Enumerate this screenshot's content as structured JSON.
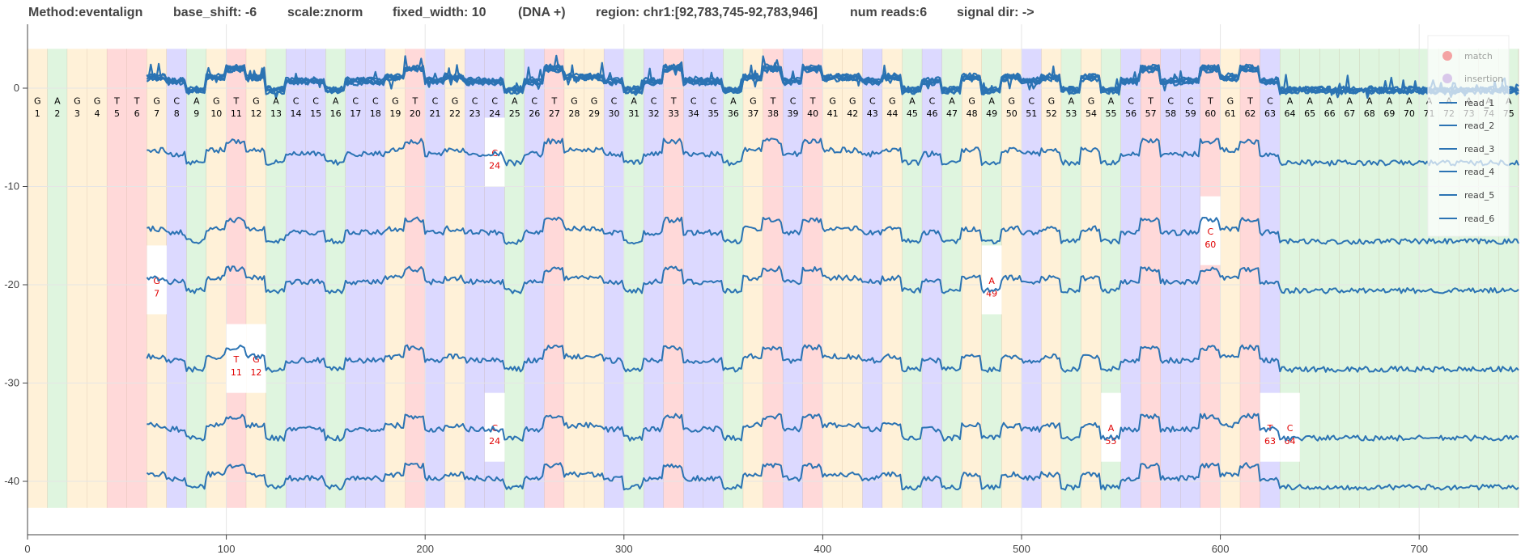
{
  "header": {
    "method": "Method:eventalign",
    "base_shift": "base_shift: -6",
    "scale": "scale:znorm",
    "fixed_width": "fixed_width: 10",
    "strand": "(DNA +)",
    "region": "region: chr1:[92,783,745-92,783,946]",
    "num_reads": "num reads:6",
    "signal_dir": "signal dir: ->"
  },
  "colors": {
    "A": "#dff5df",
    "C": "#dcd9ff",
    "G": "#fff1d8",
    "T": "#ffd9d9",
    "signal": "#2b73b3",
    "insertion_text": "#e00000",
    "match_marker": "#f4a3a3",
    "insertion_marker": "#d9c8ea"
  },
  "legend": {
    "match": "match",
    "insertion": "insertion",
    "reads": [
      "read_1",
      "read_2",
      "read_3",
      "read_4",
      "read_5",
      "read_6"
    ]
  },
  "chart_data": {
    "type": "line",
    "title": "",
    "xlabel": "",
    "ylabel": "",
    "xlim": [
      0,
      750
    ],
    "ylim": [
      -45,
      5
    ],
    "xticks": [
      0,
      100,
      200,
      300,
      400,
      500,
      600,
      700
    ],
    "yticks": [
      0,
      -10,
      -20,
      -30,
      -40
    ],
    "base_width": 10,
    "sequence": "GAGGTTGCAGTGACCACCGTCGCCACTGGCACTCCAGTCTGGCGACAGAGCGAGACTCCTGTCAAAAAAAAAAAA",
    "reads": [
      {
        "name": "read_1",
        "offset": -7,
        "start": 60,
        "end": 750,
        "insertions": [
          {
            "base": "C",
            "pos": 24
          }
        ]
      },
      {
        "name": "read_2",
        "offset": -15,
        "start": 60,
        "end": 750,
        "insertions": [
          {
            "base": "C",
            "pos": 60
          }
        ]
      },
      {
        "name": "read_3",
        "offset": -20,
        "start": 60,
        "end": 750,
        "insertions": [
          {
            "base": "G",
            "pos": 7
          },
          {
            "base": "A",
            "pos": 49
          }
        ]
      },
      {
        "name": "read_4",
        "offset": -28,
        "start": 60,
        "end": 750,
        "insertions": [
          {
            "base": "T",
            "pos": 11
          },
          {
            "base": "G",
            "pos": 12
          }
        ]
      },
      {
        "name": "read_5",
        "offset": -35,
        "start": 60,
        "end": 750,
        "insertions": [
          {
            "base": "C",
            "pos": 24
          },
          {
            "base": "A",
            "pos": 55
          },
          {
            "base": "T",
            "pos": 63
          },
          {
            "base": "C",
            "pos": 64
          }
        ]
      },
      {
        "name": "read_6",
        "offset": -40,
        "start": 60,
        "end": 750,
        "insertions": []
      }
    ]
  }
}
